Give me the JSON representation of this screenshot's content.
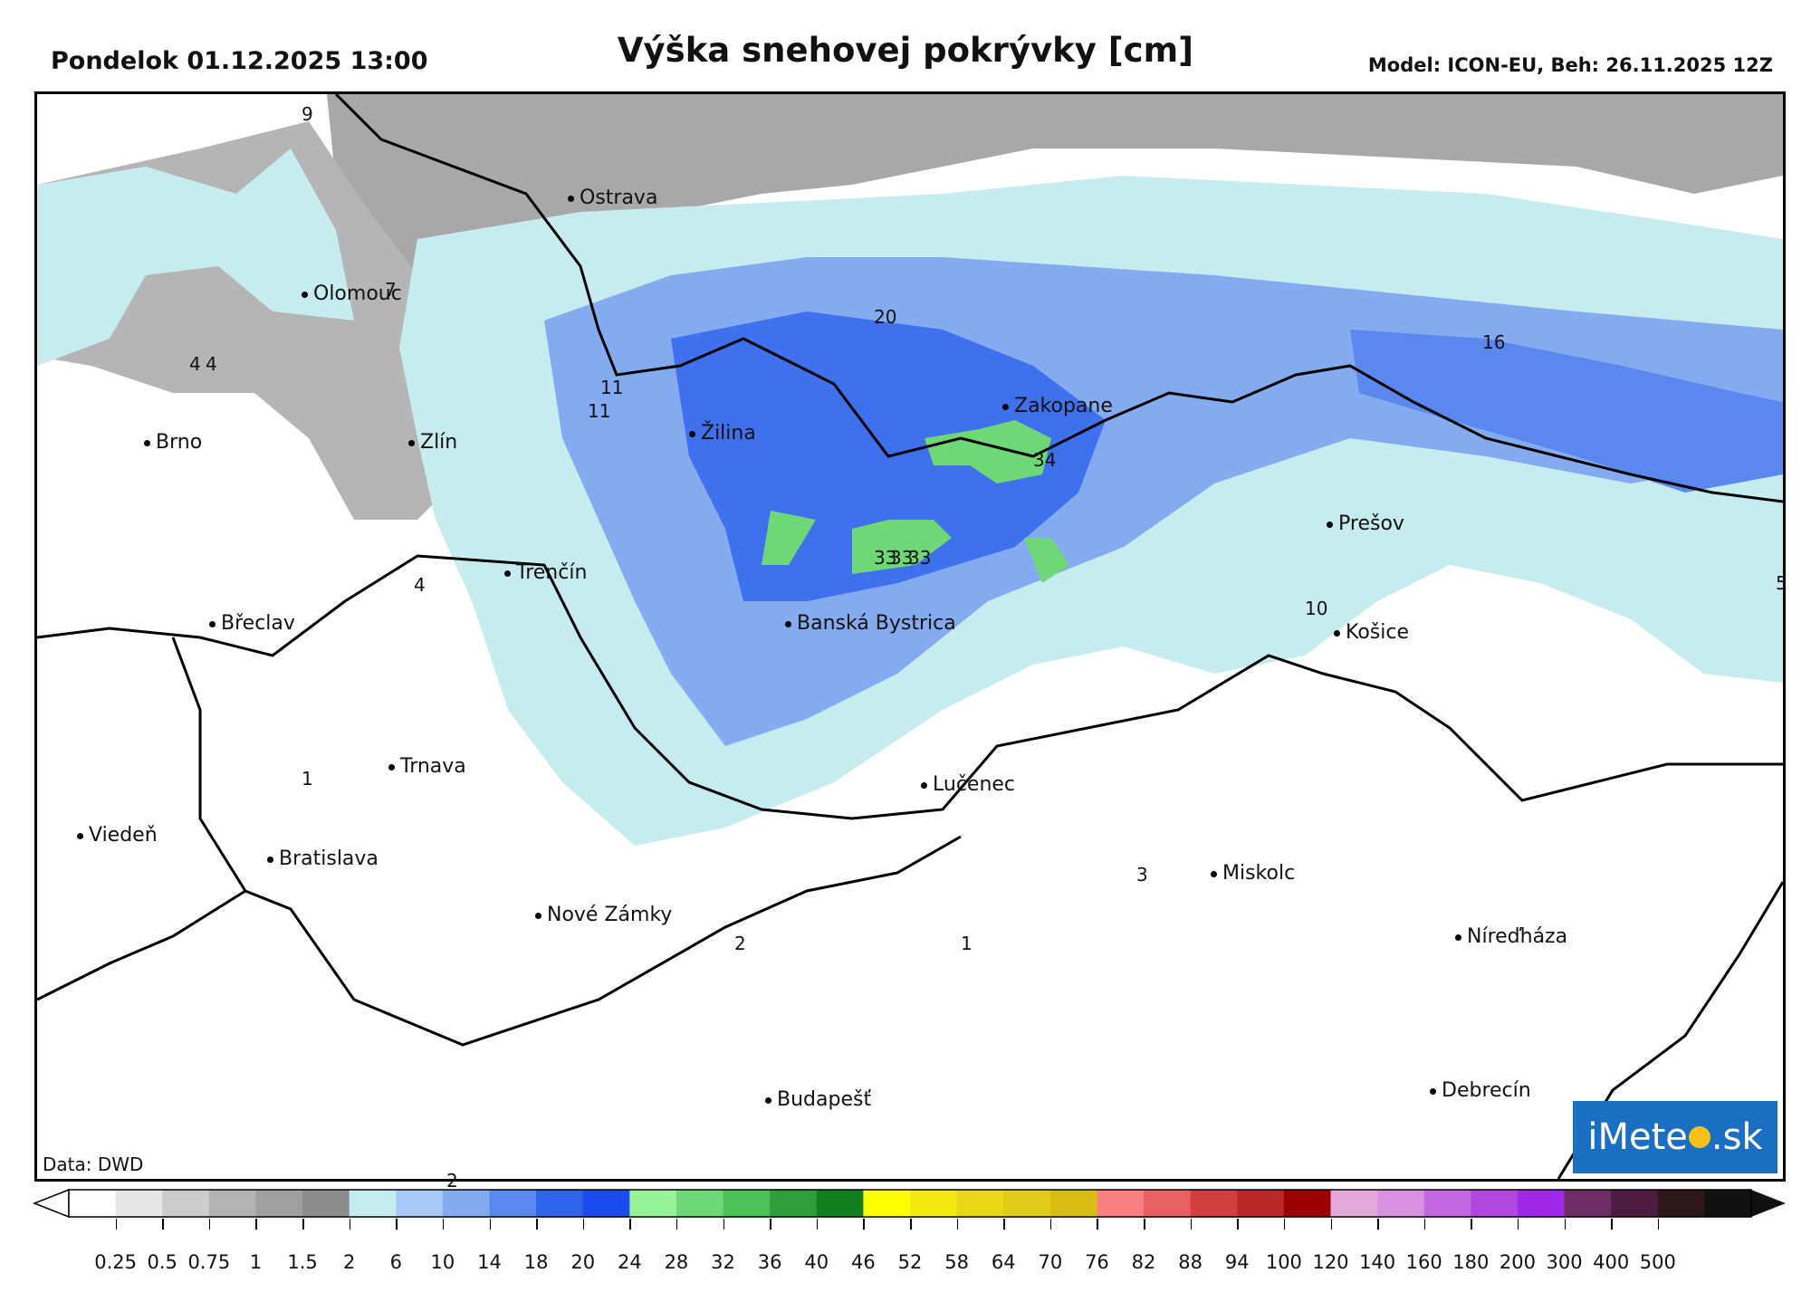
{
  "header": {
    "date": "Pondelok 01.12.2025 13:00",
    "title": "Výška snehovej pokrývky [cm]",
    "model": "Model: ICON-EU, Beh: 26.11.2025 12Z"
  },
  "map": {
    "credit": "Data: DWD",
    "logo_left": "iMete",
    "logo_right": ".sk",
    "cities": [
      {
        "name": "Ostrava"
      },
      {
        "name": "Olomouc"
      },
      {
        "name": "Brno"
      },
      {
        "name": "Zlín"
      },
      {
        "name": "Žilina"
      },
      {
        "name": "Zakopane"
      },
      {
        "name": "Trenčín"
      },
      {
        "name": "Břeclav"
      },
      {
        "name": "Banská Bystrica"
      },
      {
        "name": "Prešov"
      },
      {
        "name": "Košice"
      },
      {
        "name": "Trnava"
      },
      {
        "name": "Lučenec"
      },
      {
        "name": "Viedeň"
      },
      {
        "name": "Bratislava"
      },
      {
        "name": "Miskolc"
      },
      {
        "name": "Nové Zámky"
      },
      {
        "name": "Níreďháza"
      },
      {
        "name": "Budapešť"
      },
      {
        "name": "Debrecín"
      }
    ],
    "value_labels": [
      "9",
      "7",
      "4",
      "4",
      "11",
      "11",
      "20",
      "16",
      "4",
      "34",
      "33",
      "33",
      "33",
      "10",
      "1",
      "3",
      "2",
      "1",
      "2",
      "5"
    ]
  },
  "colorbar": {
    "colors": [
      "#ffffff",
      "#e6e6e6",
      "#cccccc",
      "#b3b3b3",
      "#a0a0a0",
      "#8c8c8c",
      "#c6ecf0",
      "#a8c8f5",
      "#84aaf0",
      "#5a88ee",
      "#2f63ec",
      "#1a4af0",
      "#96f39a",
      "#6fd876",
      "#4dc157",
      "#2f9f3c",
      "#107f20",
      "#ffff00",
      "#f2ea10",
      "#ead818",
      "#e2cb18",
      "#d8be10",
      "#f98080",
      "#e86060",
      "#d04040",
      "#b82828",
      "#9c0000",
      "#e4a8d8",
      "#d890e0",
      "#c468e0",
      "#b048e0",
      "#a028e8",
      "#6c2c64",
      "#4e1c40",
      "#2c1818",
      "#111111"
    ],
    "labels": [
      "0.25",
      "0.5",
      "0.75",
      "1",
      "1.5",
      "2",
      "6",
      "10",
      "14",
      "18",
      "20",
      "24",
      "28",
      "32",
      "36",
      "40",
      "46",
      "52",
      "58",
      "64",
      "70",
      "76",
      "82",
      "88",
      "94",
      "100",
      "120",
      "140",
      "160",
      "180",
      "200",
      "300",
      "400",
      "500"
    ]
  }
}
